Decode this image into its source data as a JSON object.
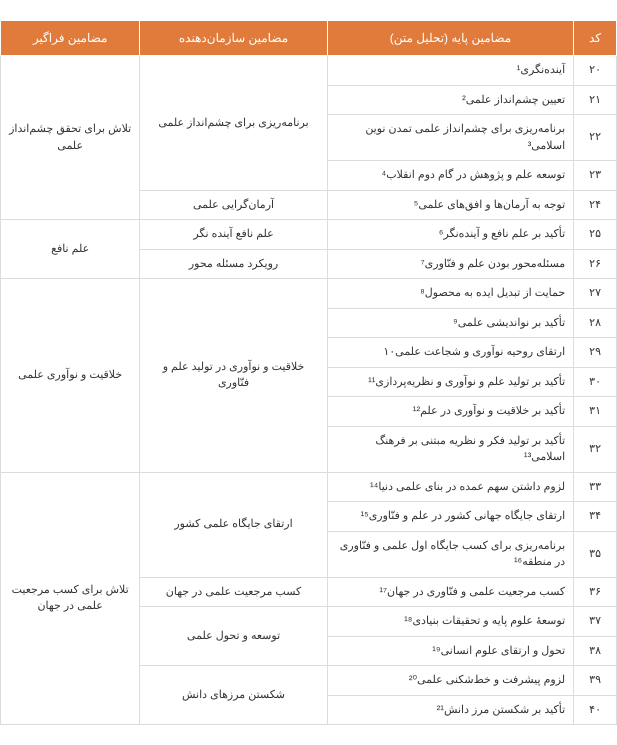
{
  "headers": {
    "code": "کد",
    "base": "مضامین پایه (تحلیل متن)",
    "organizing": "مضامین سازمان‌دهنده",
    "overarching": "مضامین فراگیر"
  },
  "rows": [
    {
      "code": "۲۰",
      "base": "آینده‌نگری¹"
    },
    {
      "code": "۲۱",
      "base": "تعیین چشم‌انداز علمی²"
    },
    {
      "code": "۲۲",
      "base": "برنامه‌ریزی برای چشم‌انداز علمی تمدن نوین اسلامی³"
    },
    {
      "code": "۲۳",
      "base": "توسعه علم و پژوهش در گام دوم انقلاب⁴"
    },
    {
      "code": "۲۴",
      "base": "توجه به آرمان‌ها و افق‌های علمی⁵"
    },
    {
      "code": "۲۵",
      "base": "تأکید بر علم نافع و آینده‌نگر⁶"
    },
    {
      "code": "۲۶",
      "base": "مسئله‌محور بودن علم و فنّاوری⁷"
    },
    {
      "code": "۲۷",
      "base": "حمایت از تبدیل ایده به محصول⁸"
    },
    {
      "code": "۲۸",
      "base": "تأکید بر نواندیشی علمی⁹"
    },
    {
      "code": "۲۹",
      "base": "ارتقای روحیه نوآوری و شجاعت علمی۱۰"
    },
    {
      "code": "۳۰",
      "base": "تأکید بر تولید علم و نوآوری و نظریه‌پردازی¹¹"
    },
    {
      "code": "۳۱",
      "base": "تأکید بر خلاقیت و نوآوری در علم¹²"
    },
    {
      "code": "۳۲",
      "base": "تأکید بر تولید فکر و نظریه مبتنی بر فرهنگ اسلامی¹³"
    },
    {
      "code": "۳۳",
      "base": "لزوم داشتن سهم عمده در بنای علمی دنیا¹⁴"
    },
    {
      "code": "۳۴",
      "base": "ارتقای جایگاه جهانی کشور در علم و فنّاوری¹⁵"
    },
    {
      "code": "۳۵",
      "base": "برنامه‌ریزی برای کسب جایگاه اول علمی و فنّاوری در منطقه¹⁶"
    },
    {
      "code": "۳۶",
      "base": "کسب مرجعیت علمی و فنّاوری در جهان¹⁷"
    },
    {
      "code": "۳۷",
      "base": "توسعۀ علوم پایه و تحقیقات بنیادی¹⁸"
    },
    {
      "code": "۳۸",
      "base": "تحول و ارتقای علوم انسانی¹⁹"
    },
    {
      "code": "۳۹",
      "base": "لزوم پیشرفت و خط‌شکنی علمی²⁰"
    },
    {
      "code": "۴۰",
      "base": "تأکید بر شکستن مرز دانش²¹"
    }
  ],
  "organizing": {
    "o1": "برنامه‌ریزی برای چشم‌انداز علمی",
    "o2": "آرمان‌گرایی علمی",
    "o3": "علم نافع آینده نگر",
    "o4": "رویکرد مسئله محور",
    "o5": "خلاقیت و نوآوری در تولید علم و فنّاوری",
    "o6": "ارتقای جایگاه علمی کشور",
    "o7": "کسب مرجعیت علمی در جهان",
    "o8": "توسعه و تحول علمی",
    "o9": "شکستن مرزهای دانش"
  },
  "overarching": {
    "v1": "تلاش برای تحقق چشم‌انداز علمی",
    "v2": "علم نافع",
    "v3": "خلاقیت و نوآوری علمی",
    "v4": "تلاش برای کسب مرجعیت علمی در جهان"
  },
  "style": {
    "header_bg": "#e07b3c",
    "header_fg": "#ffffff",
    "border": "#dcdcdc",
    "text": "#333333",
    "font_size_header": 12,
    "font_size_cell": 11
  }
}
